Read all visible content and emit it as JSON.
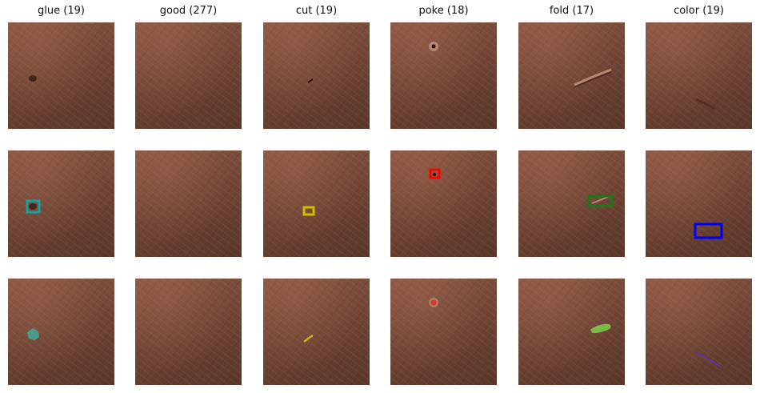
{
  "columns": [
    {
      "key": "glue",
      "title": "glue (19)",
      "color": "#0fa3a3"
    },
    {
      "key": "good",
      "title": "good (277)",
      "color": ""
    },
    {
      "key": "cut",
      "title": "cut (19)",
      "color": "#c8c200"
    },
    {
      "key": "poke",
      "title": "poke (18)",
      "color": "#ff0000"
    },
    {
      "key": "fold",
      "title": "fold (17)",
      "color": "#1a7a1a"
    },
    {
      "key": "color",
      "title": "color (19)",
      "color": "#0000ff"
    }
  ],
  "rows": [
    "image",
    "bounding-box",
    "segmentation-mask"
  ],
  "colors": {
    "leather": "#6b4233",
    "glue_mask": "#3fa89a",
    "cut_mask": "#c9b21a",
    "poke_mask": "#e0302a",
    "fold_mask": "#7cc14a",
    "color_mask": "#5a2fd0"
  }
}
